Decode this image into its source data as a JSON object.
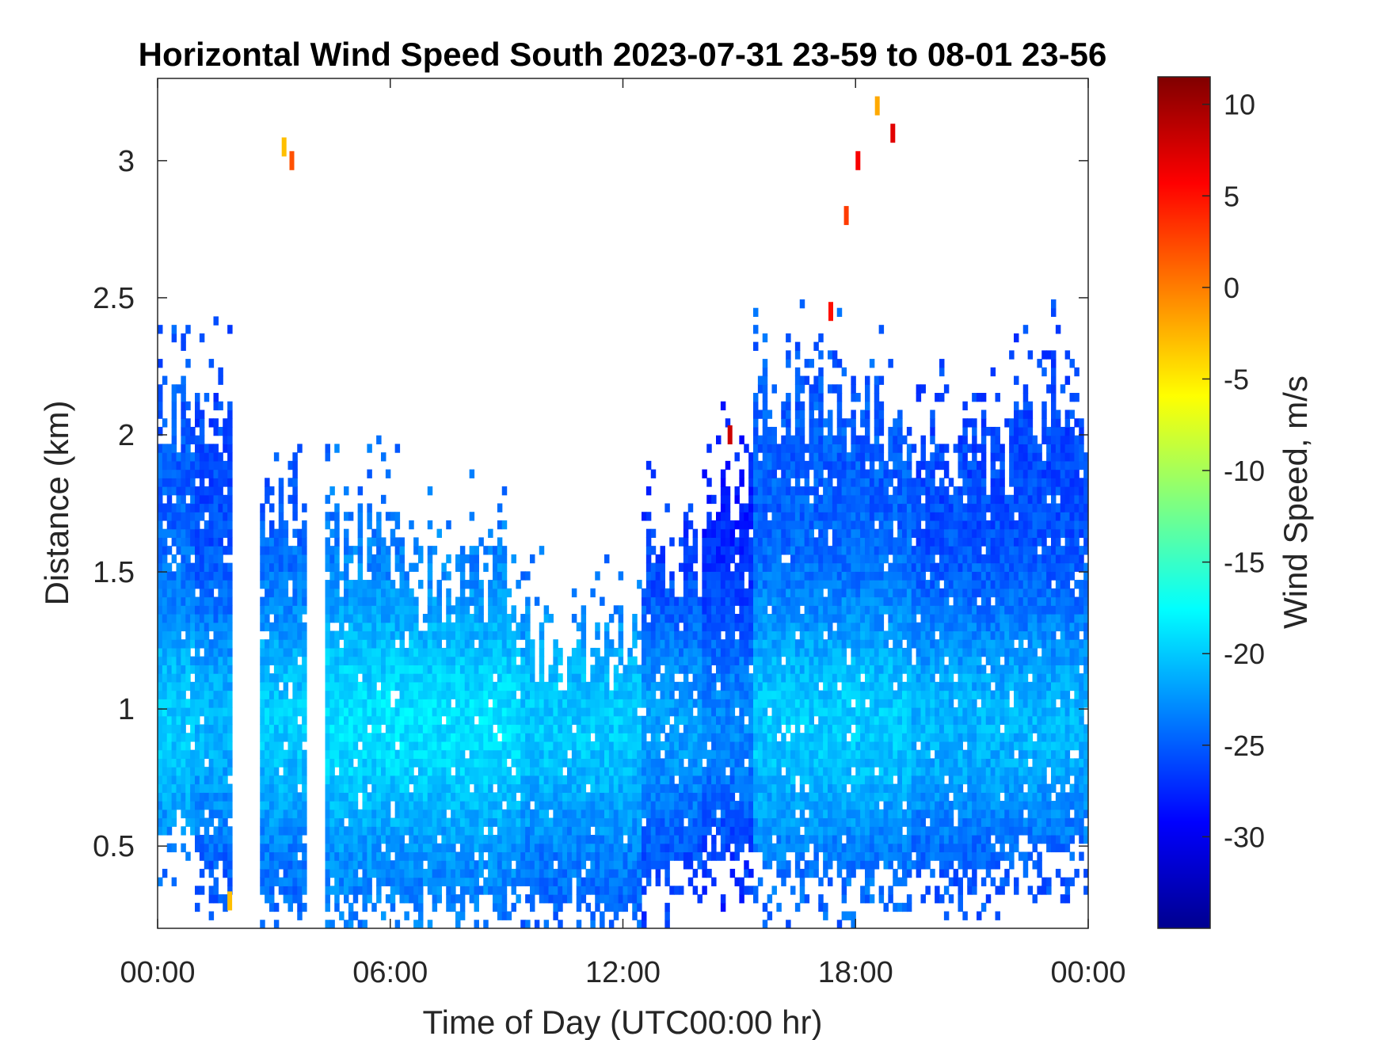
{
  "chart_data": {
    "type": "heatmap",
    "title": "Horizontal Wind Speed South 2023-07-31 23-59 to 08-01 23-56",
    "xlabel": "Time of Day (UTC00:00 hr)",
    "ylabel": "Distance (km)",
    "x_ticks": [
      "00:00",
      "06:00",
      "12:00",
      "18:00",
      "00:00"
    ],
    "x_tick_hours": [
      0,
      6,
      12,
      18,
      24
    ],
    "xlim_hours": [
      0,
      24
    ],
    "y_ticks": [
      "0.5",
      "1",
      "1.5",
      "2",
      "2.5",
      "3"
    ],
    "y_tick_values": [
      0.5,
      1,
      1.5,
      2,
      2.5,
      3
    ],
    "ylim_km": [
      0.2,
      3.3
    ],
    "colorbar": {
      "label": "Wind Speed, m/s",
      "ticks": [
        "10",
        "5",
        "0",
        "-5",
        "-10",
        "-15",
        "-20",
        "-25",
        "-30"
      ],
      "tick_values": [
        10,
        5,
        0,
        -5,
        -10,
        -15,
        -20,
        -25,
        -30
      ],
      "range": [
        -35,
        11.5
      ],
      "colormap": "jet"
    },
    "profiles": [
      {
        "t0": 0.0,
        "t1": 0.9,
        "bottom": 0.6,
        "top": 2.05,
        "speed": -19
      },
      {
        "t0": 0.9,
        "t1": 1.9,
        "bottom": 0.42,
        "top": 2.0,
        "speed": -20
      },
      {
        "t0": 2.6,
        "t1": 3.8,
        "bottom": 0.3,
        "top": 1.75,
        "speed": -19
      },
      {
        "t0": 4.3,
        "t1": 6.3,
        "bottom": 0.32,
        "top": 1.6,
        "speed": -18
      },
      {
        "t0": 6.3,
        "t1": 9.3,
        "bottom": 0.3,
        "top": 1.45,
        "speed": -18
      },
      {
        "t0": 9.3,
        "t1": 12.5,
        "bottom": 0.3,
        "top": 1.25,
        "speed": -19
      },
      {
        "t0": 12.5,
        "t1": 14.0,
        "bottom": 0.4,
        "top": 1.55,
        "speed": -21
      },
      {
        "t0": 14.0,
        "t1": 15.4,
        "bottom": 0.5,
        "top": 1.8,
        "speed": -22
      },
      {
        "t0": 15.4,
        "t1": 17.5,
        "bottom": 0.45,
        "top": 2.1,
        "speed": -19
      },
      {
        "t0": 17.5,
        "t1": 19.5,
        "bottom": 0.4,
        "top": 2.05,
        "speed": -19
      },
      {
        "t0": 19.5,
        "t1": 22.0,
        "bottom": 0.45,
        "top": 1.95,
        "speed": -20
      },
      {
        "t0": 22.0,
        "t1": 24.0,
        "bottom": 0.5,
        "top": 2.1,
        "speed": -20
      }
    ],
    "high_speed_spots": [
      {
        "t": 3.2,
        "d": 3.05,
        "speed": -3
      },
      {
        "t": 3.4,
        "d": 3.0,
        "speed": 2
      },
      {
        "t": 14.7,
        "d": 2.0,
        "speed": 8
      },
      {
        "t": 17.3,
        "d": 2.45,
        "speed": 5
      },
      {
        "t": 17.7,
        "d": 2.8,
        "speed": 3
      },
      {
        "t": 18.0,
        "d": 3.0,
        "speed": 6
      },
      {
        "t": 18.5,
        "d": 3.2,
        "speed": -2
      },
      {
        "t": 18.9,
        "d": 3.1,
        "speed": 7
      },
      {
        "t": 1.8,
        "d": 0.3,
        "speed": -3
      }
    ]
  }
}
